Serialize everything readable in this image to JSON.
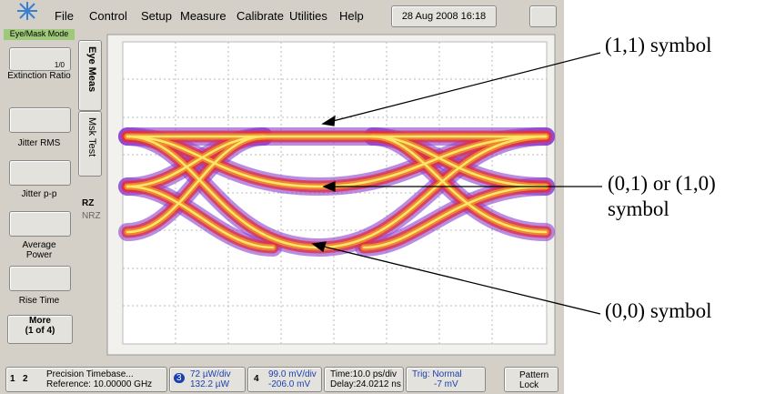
{
  "menu": {
    "items": [
      "File",
      "Control",
      "Setup",
      "Measure",
      "Calibrate",
      "Utilities",
      "Help"
    ],
    "datetime": "28 Aug 2008  16:18"
  },
  "mode_label": "Eye/Mask Mode",
  "measurements": [
    {
      "icon": "1/0",
      "label": "Extinction Ratio"
    },
    {
      "label": "Jitter RMS"
    },
    {
      "label": "Jitter p-p"
    },
    {
      "label": "Average Power"
    },
    {
      "label": "Rise Time"
    }
  ],
  "more": {
    "label": "More",
    "page": "(1 of 4)"
  },
  "tabs": [
    "Eye Meas",
    "Msk Test"
  ],
  "format": [
    "RZ",
    "NRZ"
  ],
  "status_bar": {
    "channels": [
      "1",
      "2"
    ],
    "timebase": "Precision Timebase...",
    "reference": "Reference: 10.00000 GHz",
    "ch3": {
      "number": "3",
      "scale": "72 µW/div",
      "offset": "132.2 µW"
    },
    "ch4": {
      "number": "4",
      "scale": "99.0 mV/div",
      "offset": "-206.0 mV"
    },
    "time": "Time:10.0 ps/div",
    "delay": "Delay:24.0212 ns",
    "trig": "Trig: Normal",
    "trig_level": "-7 mV",
    "pattern": "Pattern Lock"
  },
  "annotations": [
    "(1,1) symbol",
    "(0,1) or (1,0) symbol",
    "(0,0) symbol"
  ]
}
